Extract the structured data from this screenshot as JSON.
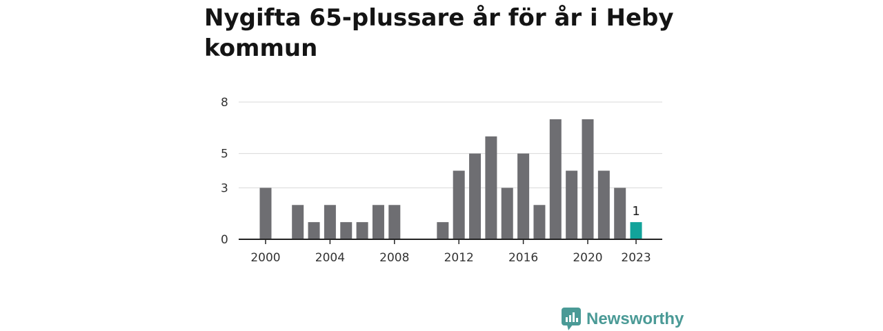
{
  "title": "Nygifta 65-plussare år för år i Heby kommun",
  "brand": {
    "name": "Newsworthy",
    "color": "#4a9a96"
  },
  "colors": {
    "bar": "#6e6e72",
    "highlight": "#12a39a",
    "grid": "#d9d9d9",
    "axis": "#222222"
  },
  "chart_data": {
    "type": "bar",
    "title": "Nygifta 65-plussare år för år i Heby kommun",
    "xlabel": "",
    "ylabel": "",
    "categories": [
      2000,
      2001,
      2002,
      2003,
      2004,
      2005,
      2006,
      2007,
      2008,
      2009,
      2010,
      2011,
      2012,
      2013,
      2014,
      2015,
      2016,
      2017,
      2018,
      2019,
      2020,
      2021,
      2022,
      2023
    ],
    "values": [
      3,
      0,
      2,
      1,
      2,
      1,
      1,
      2,
      2,
      0,
      0,
      1,
      4,
      5,
      6,
      3,
      5,
      2,
      7,
      4,
      7,
      4,
      3,
      1
    ],
    "ylim": [
      0,
      7.6
    ],
    "y_ticks": [
      0,
      3,
      5,
      8
    ],
    "x_ticks": [
      2000,
      2004,
      2008,
      2012,
      2016,
      2020,
      2023
    ],
    "highlight": {
      "category": 2023,
      "label": "1"
    },
    "grid": true
  }
}
